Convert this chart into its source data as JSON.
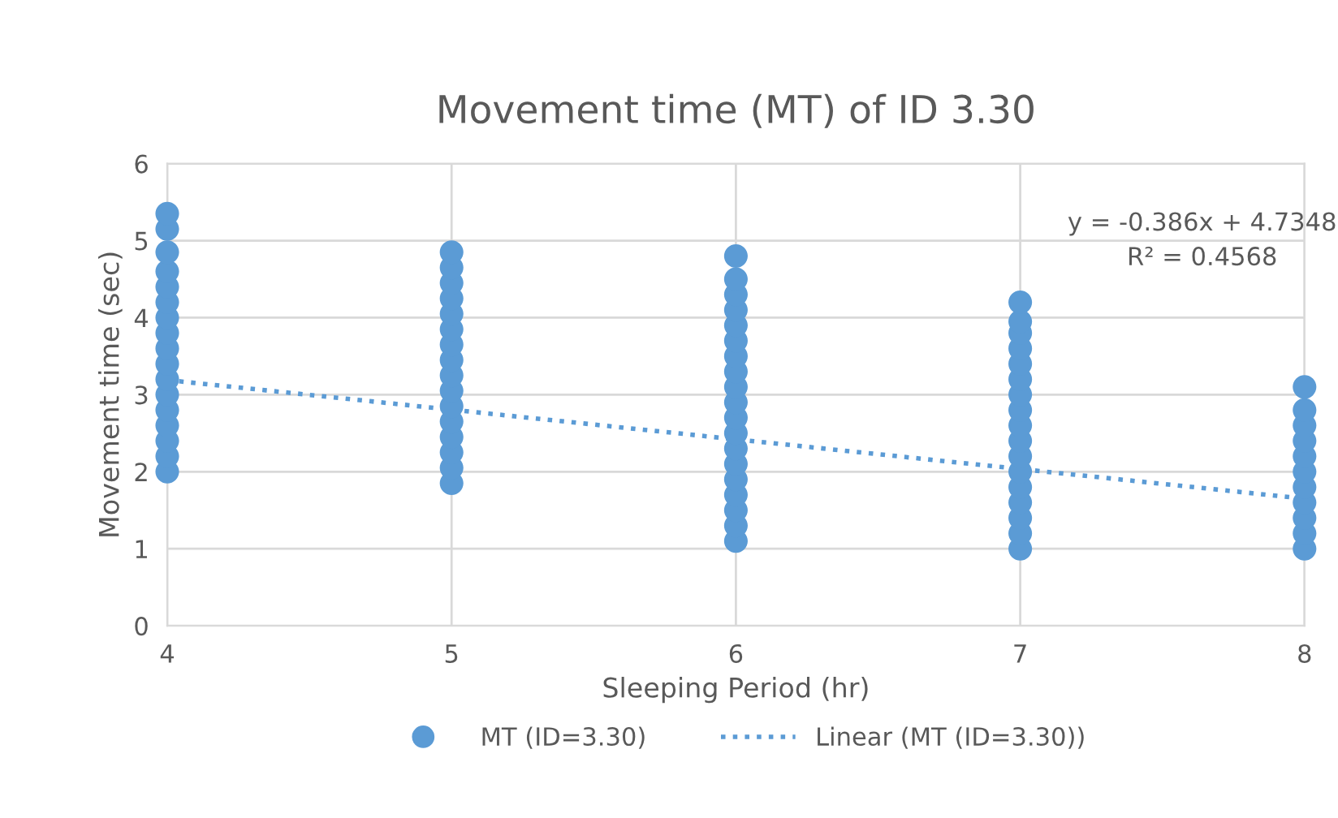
{
  "chart_data": {
    "type": "scatter",
    "title": "Movement time (MT) of ID 3.30",
    "xlabel": "Sleeping Period (hr)",
    "ylabel": "Movement time (sec)",
    "xlim": [
      4,
      8
    ],
    "xticks": [
      4,
      5,
      6,
      7,
      8
    ],
    "ylim": [
      0,
      6
    ],
    "yticks": [
      0,
      1,
      2,
      3,
      4,
      5,
      6
    ],
    "grid": true,
    "legend": "bottom",
    "marker": "circle",
    "annotations": [
      "y = -0.386x + 4.7348",
      "R² = 0.4568"
    ],
    "series": [
      {
        "name": "MT (ID=3.30)",
        "color": "#5b9bd5",
        "x": [
          4,
          4,
          4,
          4,
          4,
          4,
          4,
          4,
          4,
          4,
          4,
          4,
          4,
          4,
          4,
          4,
          4,
          5,
          5,
          5,
          5,
          5,
          5,
          5,
          5,
          5,
          5,
          5,
          5,
          5,
          5,
          5,
          5,
          6,
          6,
          6,
          6,
          6,
          6,
          6,
          6,
          6,
          6,
          6,
          6,
          6,
          6,
          6,
          6,
          6,
          6,
          6,
          7,
          7,
          7,
          7,
          7,
          7,
          7,
          7,
          7,
          7,
          7,
          7,
          7,
          7,
          7,
          7,
          7,
          8,
          8,
          8,
          8,
          8,
          8,
          8,
          8,
          8,
          8,
          8
        ],
        "values": [
          2.0,
          2.2,
          2.4,
          2.6,
          2.8,
          3.0,
          3.2,
          3.4,
          3.6,
          3.8,
          4.0,
          4.2,
          4.4,
          4.6,
          4.85,
          5.15,
          5.35,
          1.85,
          2.05,
          2.25,
          2.45,
          2.65,
          2.85,
          3.05,
          3.25,
          3.45,
          3.65,
          3.85,
          4.05,
          4.25,
          4.45,
          4.65,
          4.85,
          1.1,
          1.3,
          1.5,
          1.7,
          1.9,
          2.1,
          2.3,
          2.5,
          2.7,
          2.9,
          3.1,
          3.3,
          3.5,
          3.7,
          3.9,
          4.1,
          4.3,
          4.5,
          4.8,
          1.0,
          1.2,
          1.4,
          1.6,
          1.8,
          2.0,
          2.2,
          2.4,
          2.6,
          2.8,
          3.0,
          3.2,
          3.4,
          3.6,
          3.8,
          3.95,
          4.2,
          1.0,
          1.2,
          1.4,
          1.6,
          1.8,
          2.0,
          2.2,
          2.4,
          2.6,
          2.8,
          3.1
        ]
      },
      {
        "name": "Linear (MT (ID=3.30))",
        "color": "#5b9bd5",
        "type": "line",
        "line_style": "dotted",
        "marker": "none",
        "x": [
          4,
          8
        ],
        "values": [
          3.19,
          1.65
        ]
      }
    ]
  }
}
